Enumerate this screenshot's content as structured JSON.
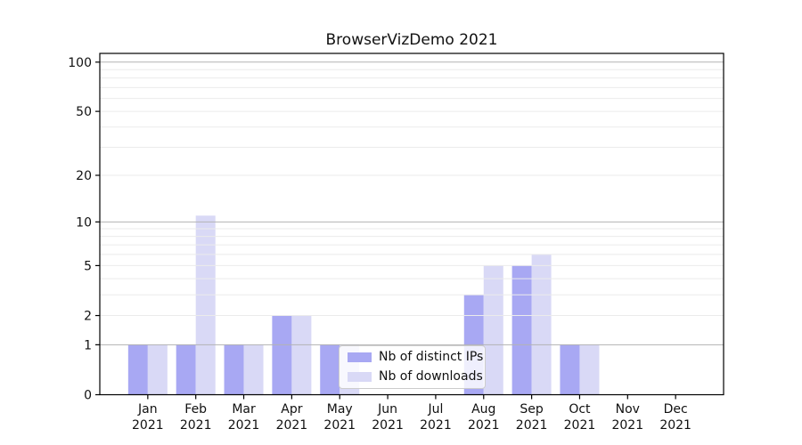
{
  "chart_data": {
    "type": "bar",
    "title": "BrowserVizDemo 2021",
    "months": [
      "Jan",
      "Feb",
      "Mar",
      "Apr",
      "May",
      "Jun",
      "Jul",
      "Aug",
      "Sep",
      "Oct",
      "Nov",
      "Dec"
    ],
    "year": "2021",
    "series": [
      {
        "name": "Nb of distinct IPs",
        "color": "#a8a8f3",
        "values": [
          1,
          1,
          1,
          2,
          1,
          0,
          0,
          3,
          5,
          1,
          0,
          0
        ]
      },
      {
        "name": "Nb of downloads",
        "color": "#d9d9f6",
        "values": [
          1,
          11,
          1,
          2,
          1,
          0,
          0,
          5,
          6,
          1,
          0,
          0
        ]
      }
    ],
    "xlabel": "",
    "ylabel": "",
    "y_scale": "log1p",
    "ylim": [
      0,
      113
    ],
    "y_ticks": [
      0,
      1,
      2,
      5,
      10,
      20,
      50,
      100
    ],
    "grid": {
      "major_lines": [
        1,
        10,
        100
      ],
      "minor_lines": [
        2,
        3,
        4,
        5,
        6,
        7,
        8,
        9,
        20,
        30,
        40,
        50,
        60,
        70,
        80,
        90
      ],
      "major_color": "#b3b3b3",
      "minor_color": "#ebebeb"
    },
    "legend_position": "lower center"
  },
  "colors": {
    "background": "#ffffff",
    "axis": "#000000",
    "text": "#111111"
  }
}
